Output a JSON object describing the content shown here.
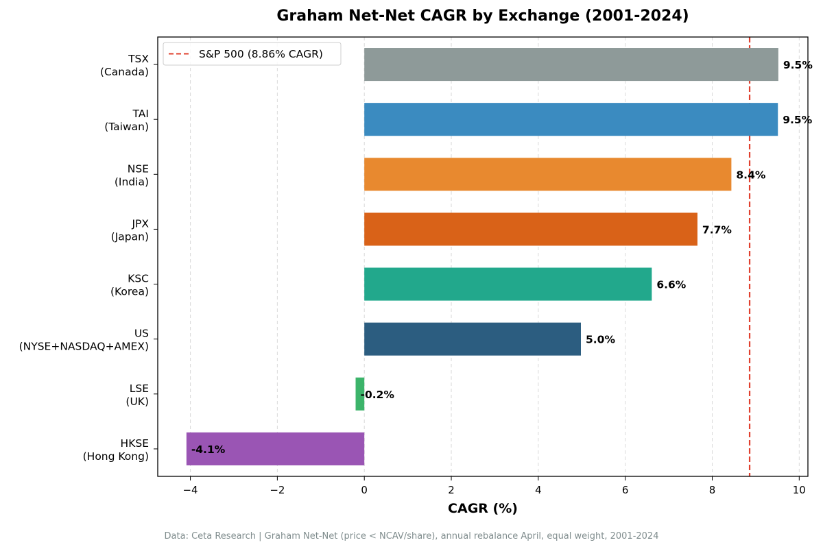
{
  "chart_data": {
    "type": "bar",
    "orientation": "horizontal",
    "title": "Graham Net-Net CAGR by Exchange (2001-2024)",
    "xlabel": "CAGR (%)",
    "ylabel": "",
    "xlim": [
      -4.75,
      10.2
    ],
    "xticks": [
      -4,
      -2,
      0,
      2,
      4,
      6,
      8,
      10
    ],
    "xtick_labels": [
      "−4",
      "−2",
      "0",
      "2",
      "4",
      "6",
      "8",
      "10"
    ],
    "grid": "vertical dashed",
    "categories": [
      {
        "line1": "TSX",
        "line2": "(Canada)"
      },
      {
        "line1": "TAI",
        "line2": "(Taiwan)"
      },
      {
        "line1": "NSE",
        "line2": "(India)"
      },
      {
        "line1": "JPX",
        "line2": "(Japan)"
      },
      {
        "line1": "KSC",
        "line2": "(Korea)"
      },
      {
        "line1": "US",
        "line2": "(NYSE+NASDAQ+AMEX)"
      },
      {
        "line1": "LSE",
        "line2": "(UK)"
      },
      {
        "line1": "HKSE",
        "line2": "(Hong Kong)"
      }
    ],
    "values": [
      9.52,
      9.51,
      8.44,
      7.66,
      6.61,
      4.98,
      -0.2,
      -4.09
    ],
    "value_labels": [
      "9.5%",
      "9.5%",
      "8.4%",
      "7.7%",
      "6.6%",
      "5.0%",
      "-0.2%",
      "-4.1%"
    ],
    "colors": [
      "#8e9a99",
      "#3b8bc0",
      "#e8892f",
      "#d96218",
      "#22a88c",
      "#2c5d80",
      "#3cb46a",
      "#9a55b4"
    ],
    "reference_line": {
      "value": 8.86,
      "label": "S&P 500 (8.86% CAGR)",
      "color": "#e0402e",
      "style": "dashed"
    },
    "legend_position": "top-left",
    "footer": "Data: Ceta Research | Graham Net-Net (price < NCAV/share), annual rebalance April, equal weight, 2001-2024"
  }
}
